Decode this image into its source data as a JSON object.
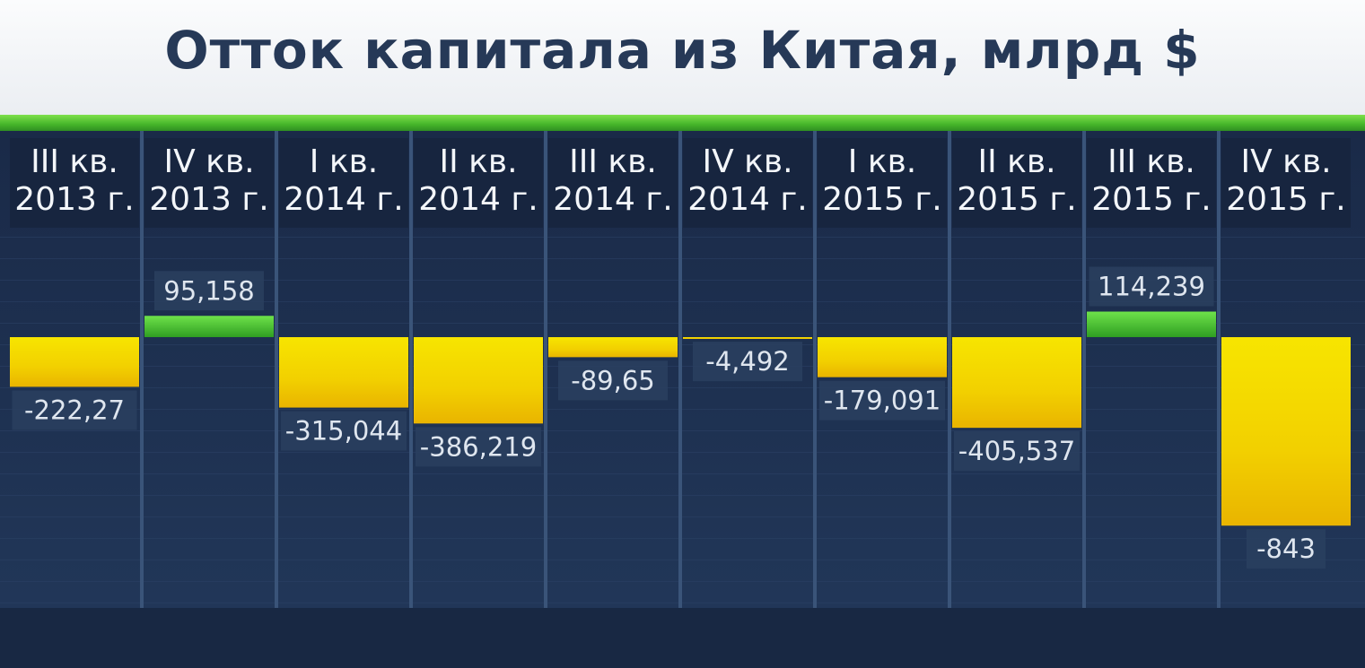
{
  "title": "Отток капитала из Китая, млрд $",
  "colors": {
    "panel": "#1f3253",
    "column_divider": "#3a5479",
    "negative_bar": "#f2d400",
    "positive_bar": "#4fc433",
    "accent_rule": "#5acb38"
  },
  "chart_data": {
    "type": "bar",
    "title": "Отток капитала из Китая, млрд $",
    "categories": [
      [
        "III кв.",
        "2013 г."
      ],
      [
        "IV кв.",
        "2013 г."
      ],
      [
        "I кв.",
        "2014 г."
      ],
      [
        "II кв.",
        "2014 г."
      ],
      [
        "III кв.",
        "2014 г."
      ],
      [
        "IV кв.",
        "2014 г."
      ],
      [
        "I кв.",
        "2015 г."
      ],
      [
        "II кв.",
        "2015 г."
      ],
      [
        "III кв.",
        "2015 г."
      ],
      [
        "IV кв.",
        "2015 г."
      ]
    ],
    "values": [
      -222.27,
      95.158,
      -315.044,
      -386.219,
      -89.65,
      -4.492,
      -179.091,
      -405.537,
      114.239,
      -843
    ],
    "value_labels": [
      "-222,27",
      "95,158",
      "-315,044",
      "-386,219",
      "-89,65",
      "-4,492",
      "-179,091",
      "-405,537",
      "114,239",
      "-843"
    ],
    "xlabel": "",
    "ylabel": "",
    "ylim": [
      -843,
      114.239
    ],
    "grid": false,
    "legend": "none"
  }
}
